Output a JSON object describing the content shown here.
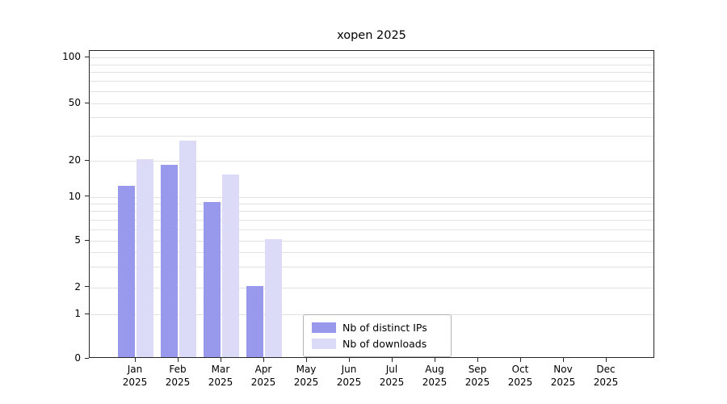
{
  "title": "xopen 2025",
  "colors": {
    "distinct_ips": "#9898ec",
    "downloads": "#dbdbf8",
    "grid": "#e2e2e2",
    "axis": "#262626",
    "background": "#ffffff",
    "legend_border": "#b4b4b4"
  },
  "y_axis": {
    "major_ticks": [
      0,
      1,
      2,
      5,
      10,
      20,
      50,
      100
    ],
    "minor_ticks": [
      3,
      4,
      6,
      7,
      8,
      9,
      30,
      40,
      60,
      70,
      80,
      90
    ]
  },
  "x_axis": {
    "months": [
      "Jan",
      "Feb",
      "Mar",
      "Apr",
      "May",
      "Jun",
      "Jul",
      "Aug",
      "Sep",
      "Oct",
      "Nov",
      "Dec"
    ],
    "year": "2025"
  },
  "legend": {
    "items": [
      {
        "label": "Nb of distinct IPs",
        "color_key": "distinct_ips"
      },
      {
        "label": "Nb of downloads",
        "color_key": "downloads"
      }
    ]
  },
  "chart_data": {
    "type": "bar",
    "title": "xopen 2025",
    "categories": [
      "Jan 2025",
      "Feb 2025",
      "Mar 2025",
      "Apr 2025",
      "May 2025",
      "Jun 2025",
      "Jul 2025",
      "Aug 2025",
      "Sep 2025",
      "Oct 2025",
      "Nov 2025",
      "Dec 2025"
    ],
    "series": [
      {
        "name": "Nb of distinct IPs",
        "color": "#9898ec",
        "values": [
          12,
          18,
          9,
          2,
          0,
          0,
          0,
          0,
          0,
          0,
          0,
          0
        ]
      },
      {
        "name": "Nb of downloads",
        "color": "#dbdbf8",
        "values": [
          20,
          27,
          15,
          5,
          0,
          0,
          0,
          0,
          0,
          0,
          0,
          0
        ]
      }
    ],
    "yscale": "log",
    "yticks": [
      0,
      1,
      2,
      5,
      10,
      20,
      50,
      100
    ],
    "ylim": [
      0,
      100
    ],
    "grid": "horizontal",
    "legend_position": "inside lower-center-left"
  }
}
